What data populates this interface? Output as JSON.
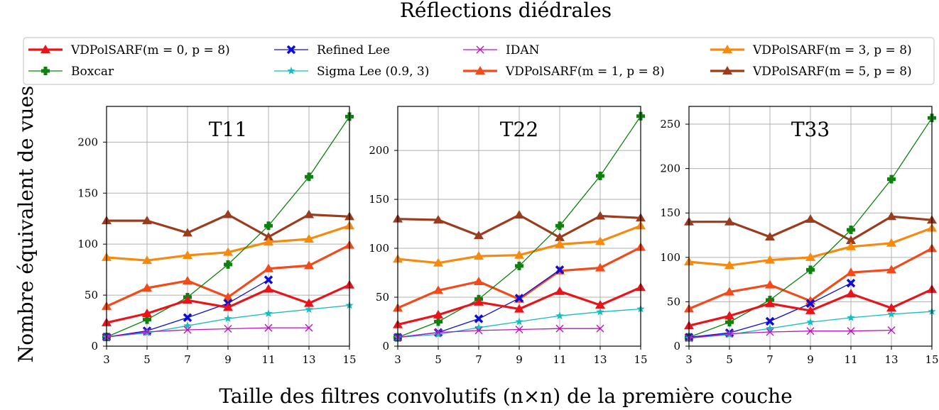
{
  "figure": {
    "title": "Réflections diédrales",
    "xlabel": "Taille des filtres convolutifs (n×n) de la première couche",
    "ylabel": "Nombre équivalent de vues"
  },
  "legend": {
    "placement": "top",
    "columns": 4
  },
  "series_styles": [
    {
      "name": "VDPolSARF(m = 0, p = 8)",
      "color": "#e8141a",
      "marker": "triangle",
      "width": "thick"
    },
    {
      "name": "Boxcar",
      "color": "#0d800d",
      "marker": "plus",
      "width": "thin"
    },
    {
      "name": "Refined Lee",
      "color": "#0d0dd6",
      "marker": "x",
      "width": "thin"
    },
    {
      "name": "Sigma Lee (0.9, 3)",
      "color": "#17bdbd",
      "marker": "star",
      "width": "thin"
    },
    {
      "name": "IDAN",
      "color": "#bb14bb",
      "marker": "x-thin",
      "width": "thin"
    },
    {
      "name": "VDPolSARF(m = 1, p = 8)",
      "color": "#f24a1a",
      "marker": "triangle",
      "width": "thick"
    },
    {
      "name": "VDPolSARF(m = 3, p = 8)",
      "color": "#f58a0e",
      "marker": "triangle",
      "width": "thick"
    },
    {
      "name": "VDPolSARF(m = 5, p = 8)",
      "color": "#9a3d1f",
      "marker": "triangle",
      "width": "thick"
    }
  ],
  "chart_data": [
    {
      "type": "line",
      "title": "T11",
      "x": [
        3,
        5,
        7,
        9,
        11,
        13,
        15
      ],
      "xlim": [
        3,
        15
      ],
      "ylim": [
        0,
        235
      ],
      "yticks": [
        0,
        50,
        100,
        150,
        200
      ],
      "grid": true,
      "series": [
        {
          "name": "VDPolSARF(m = 0, p = 8)",
          "values": [
            23,
            32,
            45,
            38,
            56,
            42,
            60
          ]
        },
        {
          "name": "Boxcar",
          "values": [
            9,
            26,
            48,
            80,
            118,
            166,
            225
          ]
        },
        {
          "name": "Refined Lee",
          "values": [
            9,
            15,
            28,
            42,
            65,
            null,
            null
          ]
        },
        {
          "name": "Sigma Lee (0.9, 3)",
          "values": [
            9,
            13,
            20,
            27,
            32,
            36,
            40
          ]
        },
        {
          "name": "IDAN",
          "values": [
            9,
            14,
            16,
            17,
            18,
            18,
            null
          ]
        },
        {
          "name": "VDPolSARF(m = 1, p = 8)",
          "values": [
            39,
            57,
            64,
            48,
            76,
            79,
            99
          ]
        },
        {
          "name": "VDPolSARF(m = 3, p = 8)",
          "values": [
            87,
            84,
            89,
            92,
            102,
            105,
            118
          ]
        },
        {
          "name": "VDPolSARF(m = 5, p = 8)",
          "values": [
            123,
            123,
            111,
            129,
            107,
            129,
            127
          ]
        }
      ]
    },
    {
      "type": "line",
      "title": "T22",
      "x": [
        3,
        5,
        7,
        9,
        11,
        13,
        15
      ],
      "xlim": [
        3,
        15
      ],
      "ylim": [
        0,
        245
      ],
      "yticks": [
        0,
        50,
        100,
        150,
        200
      ],
      "grid": true,
      "series": [
        {
          "name": "VDPolSARF(m = 0, p = 8)",
          "values": [
            22,
            32,
            45,
            38,
            56,
            42,
            60
          ]
        },
        {
          "name": "Boxcar",
          "values": [
            9,
            25,
            48,
            82,
            123,
            174,
            235
          ]
        },
        {
          "name": "Refined Lee",
          "values": [
            9,
            14,
            28,
            49,
            78,
            null,
            null
          ]
        },
        {
          "name": "Sigma Lee (0.9, 3)",
          "values": [
            9,
            12,
            19,
            25,
            31,
            35,
            38
          ]
        },
        {
          "name": "IDAN",
          "values": [
            9,
            14,
            16,
            17,
            18,
            18,
            null
          ]
        },
        {
          "name": "VDPolSARF(m = 1, p = 8)",
          "values": [
            39,
            57,
            66,
            48,
            77,
            80,
            101
          ]
        },
        {
          "name": "VDPolSARF(m = 3, p = 8)",
          "values": [
            89,
            85,
            92,
            93,
            104,
            107,
            123
          ]
        },
        {
          "name": "VDPolSARF(m = 5, p = 8)",
          "values": [
            130,
            129,
            113,
            134,
            111,
            133,
            131
          ]
        }
      ]
    },
    {
      "type": "line",
      "title": "T33",
      "x": [
        3,
        5,
        7,
        9,
        11,
        13,
        15
      ],
      "xlim": [
        3,
        15
      ],
      "ylim": [
        0,
        270
      ],
      "yticks": [
        0,
        50,
        100,
        150,
        200,
        250
      ],
      "grid": true,
      "series": [
        {
          "name": "VDPolSARF(m = 0, p = 8)",
          "values": [
            23,
            34,
            48,
            40,
            59,
            43,
            64
          ]
        },
        {
          "name": "Boxcar",
          "values": [
            10,
            27,
            52,
            86,
            131,
            188,
            257
          ]
        },
        {
          "name": "Refined Lee",
          "values": [
            10,
            15,
            28,
            48,
            71,
            null,
            null
          ]
        },
        {
          "name": "Sigma Lee (0.9, 3)",
          "values": [
            9,
            13,
            20,
            27,
            32,
            36,
            39
          ]
        },
        {
          "name": "IDAN",
          "values": [
            9,
            14,
            16,
            17,
            17,
            18,
            null
          ]
        },
        {
          "name": "VDPolSARF(m = 1, p = 8)",
          "values": [
            42,
            61,
            69,
            51,
            83,
            86,
            110
          ]
        },
        {
          "name": "VDPolSARF(m = 3, p = 8)",
          "values": [
            95,
            91,
            97,
            100,
            112,
            116,
            133
          ]
        },
        {
          "name": "VDPolSARF(m = 5, p = 8)",
          "values": [
            140,
            140,
            123,
            143,
            119,
            146,
            142
          ]
        }
      ]
    }
  ]
}
